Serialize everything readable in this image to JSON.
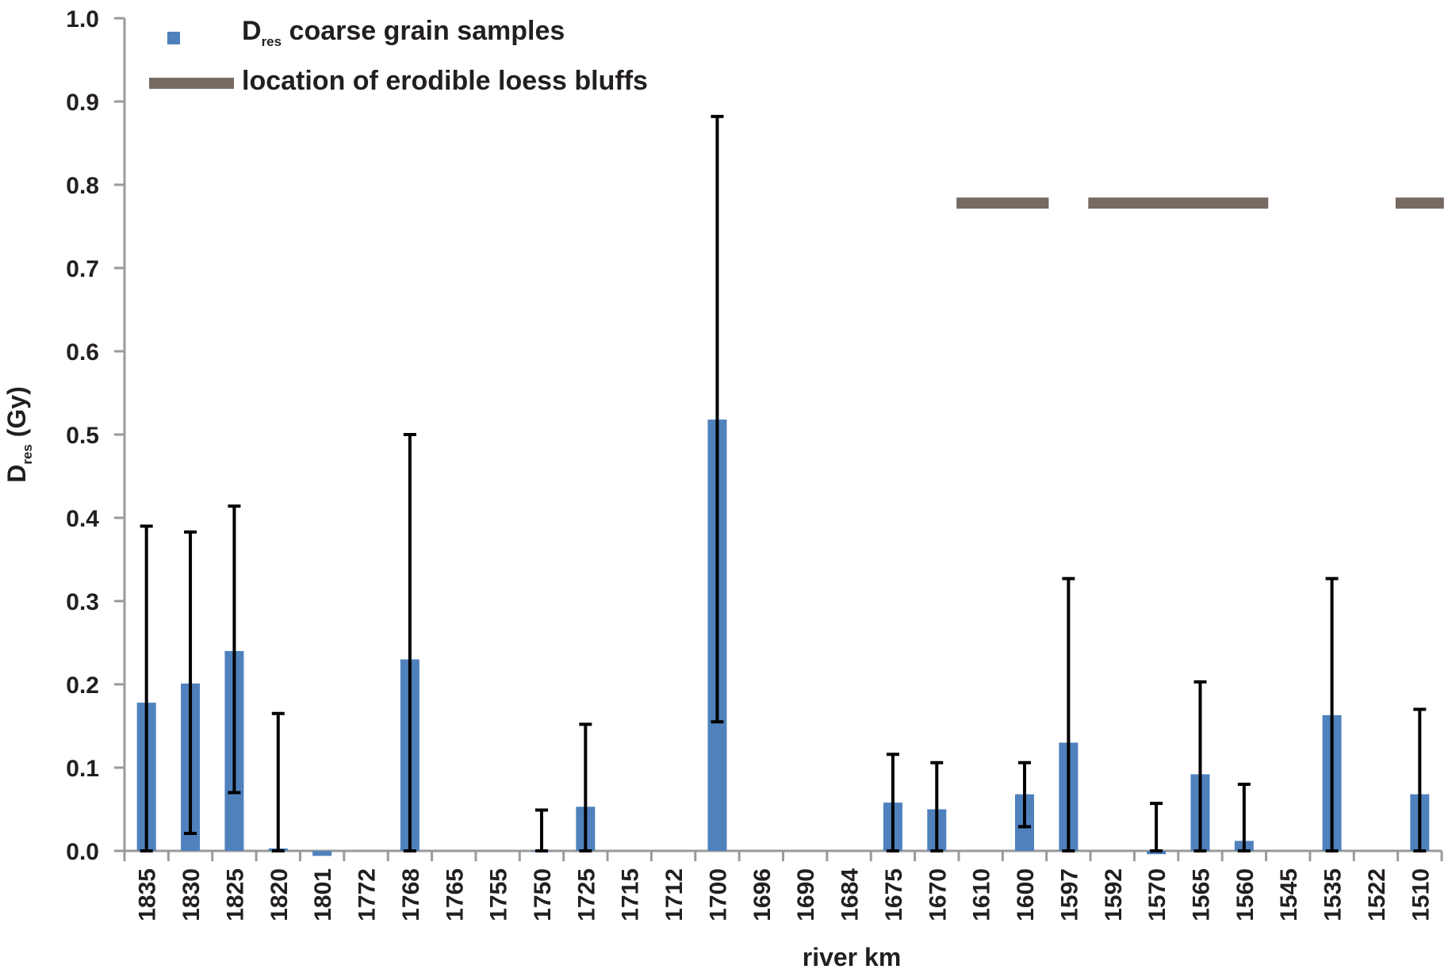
{
  "chart_data": {
    "type": "bar",
    "xlabel": "river km",
    "ylabel": {
      "main": "D",
      "sub": "res",
      "unit": " (Gy)"
    },
    "ylim": [
      0,
      1.0
    ],
    "yticks": [
      "0.0",
      "0.1",
      "0.2",
      "0.3",
      "0.4",
      "0.5",
      "0.6",
      "0.7",
      "0.8",
      "0.9",
      "1.0"
    ],
    "categories": [
      "1835",
      "1830",
      "1825",
      "1820",
      "1801",
      "1772",
      "1768",
      "1765",
      "1755",
      "1750",
      "1725",
      "1715",
      "1712",
      "1700",
      "1696",
      "1690",
      "1684",
      "1675",
      "1670",
      "1610",
      "1600",
      "1597",
      "1592",
      "1570",
      "1565",
      "1560",
      "1545",
      "1535",
      "1522",
      "1510"
    ],
    "series": [
      {
        "name": "coarse grain samples",
        "name_prefix": "D",
        "name_sub": "res",
        "color": "#4f81bd",
        "values": [
          0.178,
          0.201,
          0.24,
          0.003,
          -0.006,
          null,
          0.23,
          null,
          null,
          0.0,
          0.053,
          null,
          null,
          0.518,
          null,
          null,
          null,
          0.058,
          0.05,
          null,
          0.068,
          0.13,
          null,
          -0.004,
          0.092,
          0.012,
          null,
          0.163,
          null,
          0.068
        ],
        "error_upper": [
          0.39,
          0.383,
          0.414,
          0.165,
          null,
          null,
          0.5,
          null,
          null,
          0.049,
          0.152,
          null,
          null,
          0.882,
          null,
          null,
          null,
          0.116,
          0.106,
          null,
          0.106,
          0.327,
          null,
          0.057,
          0.203,
          0.08,
          null,
          0.327,
          null,
          0.17
        ],
        "error_lower": [
          0.0,
          0.021,
          0.07,
          0.0,
          null,
          null,
          0.0,
          null,
          null,
          0.0,
          0.0,
          null,
          null,
          0.155,
          null,
          null,
          null,
          0.0,
          0.0,
          null,
          0.029,
          0.0,
          null,
          0.0,
          0.0,
          0.0,
          null,
          0.0,
          null,
          0.0
        ]
      }
    ],
    "bluffs": {
      "name": "location of erodible loess bluffs",
      "color": "#766a62",
      "y": 0.778,
      "ranges": [
        [
          "1610",
          "1600"
        ],
        [
          "1592",
          "1560"
        ],
        [
          "1510",
          "1510"
        ]
      ]
    },
    "legend_position": "top-left"
  }
}
